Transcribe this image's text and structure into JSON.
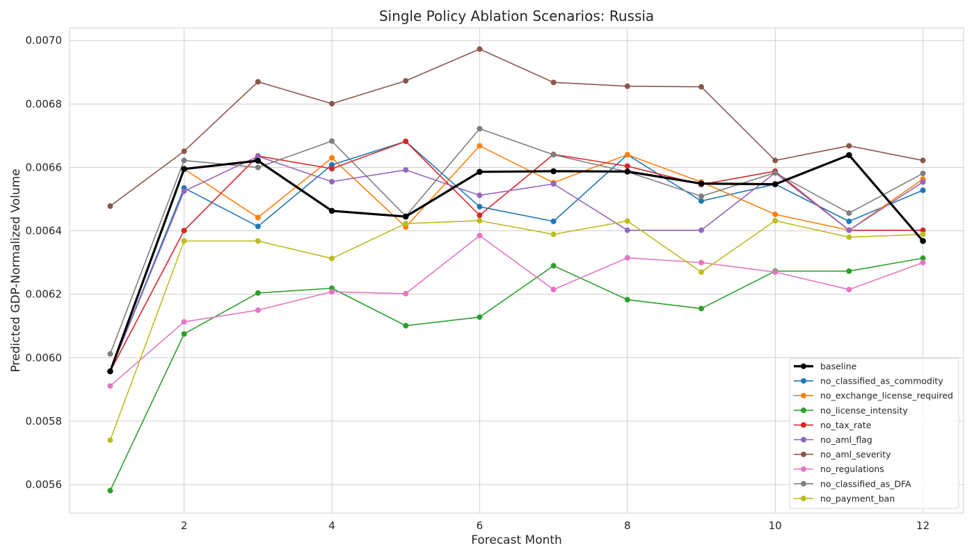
{
  "chart_data": {
    "type": "line",
    "title": "Single Policy Ablation Scenarios: Russia",
    "xlabel": "Forecast Month",
    "ylabel": "Predicted GDP-Normalized Volume",
    "xlim": [
      0.45,
      12.55
    ],
    "ylim": [
      0.00551,
      0.00704
    ],
    "xticks": [
      2,
      4,
      6,
      8,
      10,
      12
    ],
    "yticks": [
      0.0056,
      0.0058,
      0.006,
      0.0062,
      0.0064,
      0.0066,
      0.0068,
      0.007
    ],
    "ytick_labels": [
      "0.0056",
      "0.0058",
      "0.0060",
      "0.0062",
      "0.0064",
      "0.0066",
      "0.0068",
      "0.0070"
    ],
    "grid": true,
    "legend_position": "lower-right",
    "x": [
      1,
      2,
      3,
      4,
      5,
      6,
      7,
      8,
      9,
      10,
      11,
      12
    ],
    "series": [
      {
        "name": "baseline",
        "color": "#000000",
        "bold": true,
        "values": [
          0.005957,
          0.006595,
          0.006621,
          0.006463,
          0.006445,
          0.006586,
          0.006588,
          0.006587,
          0.006549,
          0.006547,
          0.006639,
          0.006368
        ]
      },
      {
        "name": "no_classified_as_commodity",
        "color": "#1f77b4",
        "values": [
          0.005957,
          0.006535,
          0.006414,
          0.006608,
          0.006682,
          0.006476,
          0.00643,
          0.00664,
          0.006494,
          0.006547,
          0.00643,
          0.006528
        ]
      },
      {
        "name": "no_exchange_license_required",
        "color": "#ff7f0e",
        "values": [
          0.005957,
          0.006595,
          0.006442,
          0.00663,
          0.006412,
          0.006668,
          0.006552,
          0.00664,
          0.006554,
          0.006452,
          0.006402,
          0.006563
        ]
      },
      {
        "name": "no_license_intensity",
        "color": "#2ca02c",
        "values": [
          0.005581,
          0.006075,
          0.006204,
          0.006219,
          0.006101,
          0.006128,
          0.00629,
          0.006183,
          0.006155,
          0.006273,
          0.006273,
          0.006314
        ]
      },
      {
        "name": "no_tax_rate",
        "color": "#d62728",
        "values": [
          0.005957,
          0.006401,
          0.006636,
          0.006596,
          0.006682,
          0.006449,
          0.006641,
          0.006604,
          0.006546,
          0.006588,
          0.006402,
          0.006402
        ]
      },
      {
        "name": "no_aml_flag",
        "color": "#9467bd",
        "values": [
          0.005957,
          0.006525,
          0.006635,
          0.006555,
          0.006592,
          0.006512,
          0.006548,
          0.006402,
          0.006402,
          0.006583,
          0.006402,
          0.006554
        ]
      },
      {
        "name": "no_aml_severity",
        "color": "#8c564b",
        "values": [
          0.006478,
          0.006651,
          0.00687,
          0.006801,
          0.006873,
          0.006973,
          0.006868,
          0.006856,
          0.006854,
          0.006622,
          0.006668,
          0.006622
        ]
      },
      {
        "name": "no_regulations",
        "color": "#e377c2",
        "values": [
          0.005911,
          0.006113,
          0.00615,
          0.006208,
          0.006202,
          0.006385,
          0.006215,
          0.006315,
          0.0063,
          0.00627,
          0.006215,
          0.0063
        ]
      },
      {
        "name": "no_classified_as_DFA",
        "color": "#7f7f7f",
        "values": [
          0.006012,
          0.006622,
          0.0066,
          0.006683,
          0.006446,
          0.006722,
          0.00664,
          0.006586,
          0.006509,
          0.006583,
          0.006456,
          0.006581
        ]
      },
      {
        "name": "no_payment_ban",
        "color": "#bcbd22",
        "values": [
          0.00574,
          0.006368,
          0.006368,
          0.006313,
          0.006423,
          0.006432,
          0.006389,
          0.006431,
          0.00627,
          0.006432,
          0.00638,
          0.006389
        ]
      }
    ]
  }
}
